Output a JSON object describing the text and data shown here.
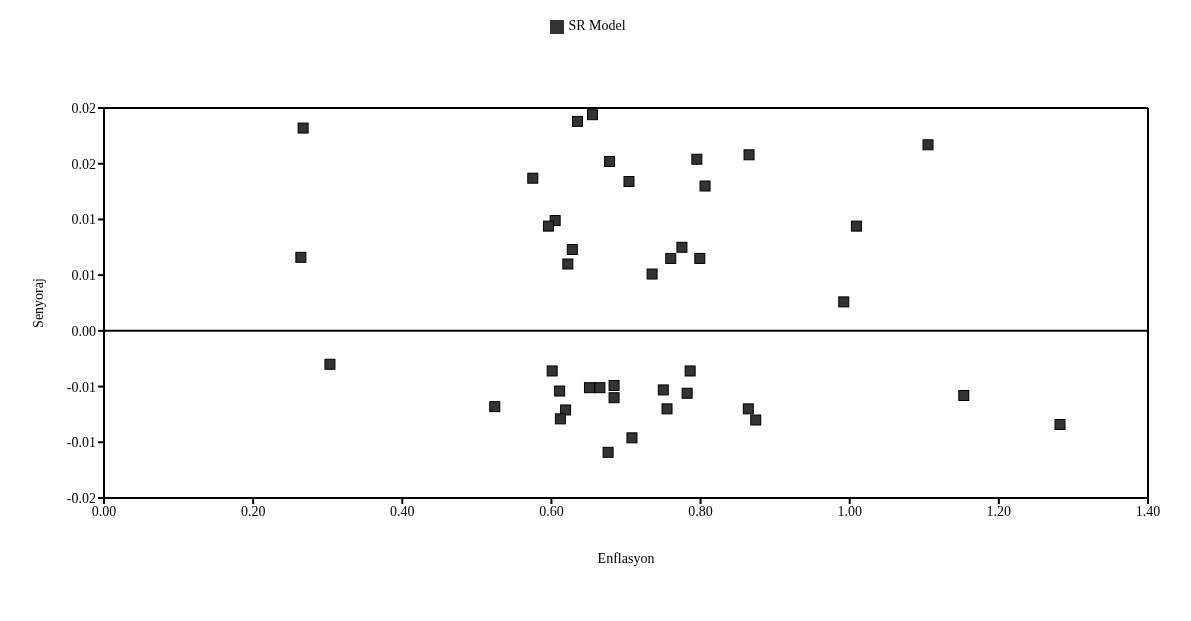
{
  "chart_data": {
    "type": "scatter",
    "xlabel": "Enflasyon",
    "ylabel": "Senyoraj",
    "xlim": [
      0,
      1.4
    ],
    "xticks": [
      {
        "value": 0,
        "label": "0.00"
      },
      {
        "value": 0.2,
        "label": "0.20"
      },
      {
        "value": 0.4,
        "label": "0.40"
      },
      {
        "value": 0.6,
        "label": "0.60"
      },
      {
        "value": 0.8,
        "label": "0.80"
      },
      {
        "value": 1,
        "label": "1.00"
      },
      {
        "value": 1.2,
        "label": "1.20"
      },
      {
        "value": 1.4,
        "label": "1.40"
      }
    ],
    "ylim": [
      -0.015,
      0.02
    ],
    "yticks": [
      {
        "value": -0.015,
        "label": "-0.02"
      },
      {
        "value": -0.01,
        "label": "-0.01"
      },
      {
        "value": -0.005,
        "label": "-0.01"
      },
      {
        "value": 0,
        "label": "0.00"
      },
      {
        "value": 0.005,
        "label": "0.01"
      },
      {
        "value": 0.01,
        "label": "0.01"
      },
      {
        "value": 0.015,
        "label": "0.02"
      },
      {
        "value": 0.02,
        "label": "0.02"
      }
    ],
    "grid": false,
    "legend": "top",
    "marker": "square",
    "ref_lines": [
      {
        "axis": "y",
        "value": 0,
        "color": "#000000"
      }
    ],
    "series": [
      {
        "name": "SR Model",
        "color": "#333333",
        "x": [
          0.267,
          0.635,
          0.655,
          0.678,
          0.795,
          0.575,
          0.704,
          0.806,
          0.605,
          0.596,
          0.264,
          0.628,
          0.622,
          0.735,
          0.775,
          0.76,
          0.799,
          0.865,
          1.105,
          1.009,
          0.992,
          0.303,
          0.524,
          0.601,
          0.611,
          0.619,
          0.612,
          0.651,
          0.665,
          0.684,
          0.684,
          0.708,
          0.676,
          0.75,
          0.786,
          0.782,
          0.755,
          0.864,
          0.874,
          1.153,
          1.282
        ],
        "values": [
          0.0182,
          0.0188,
          0.0194,
          0.0152,
          0.0154,
          0.0137,
          0.0134,
          0.013,
          0.0099,
          0.0094,
          0.0066,
          0.0073,
          0.006,
          0.0051,
          0.0075,
          0.0065,
          0.0065,
          0.0158,
          0.0167,
          0.0094,
          0.0026,
          -0.003,
          -0.0068,
          -0.0036,
          -0.0054,
          -0.0071,
          -0.0079,
          -0.0051,
          -0.0051,
          -0.0049,
          -0.006,
          -0.0096,
          -0.0109,
          -0.0053,
          -0.0036,
          -0.0056,
          -0.007,
          -0.007,
          -0.008,
          -0.0058,
          -0.0084
        ]
      }
    ]
  }
}
